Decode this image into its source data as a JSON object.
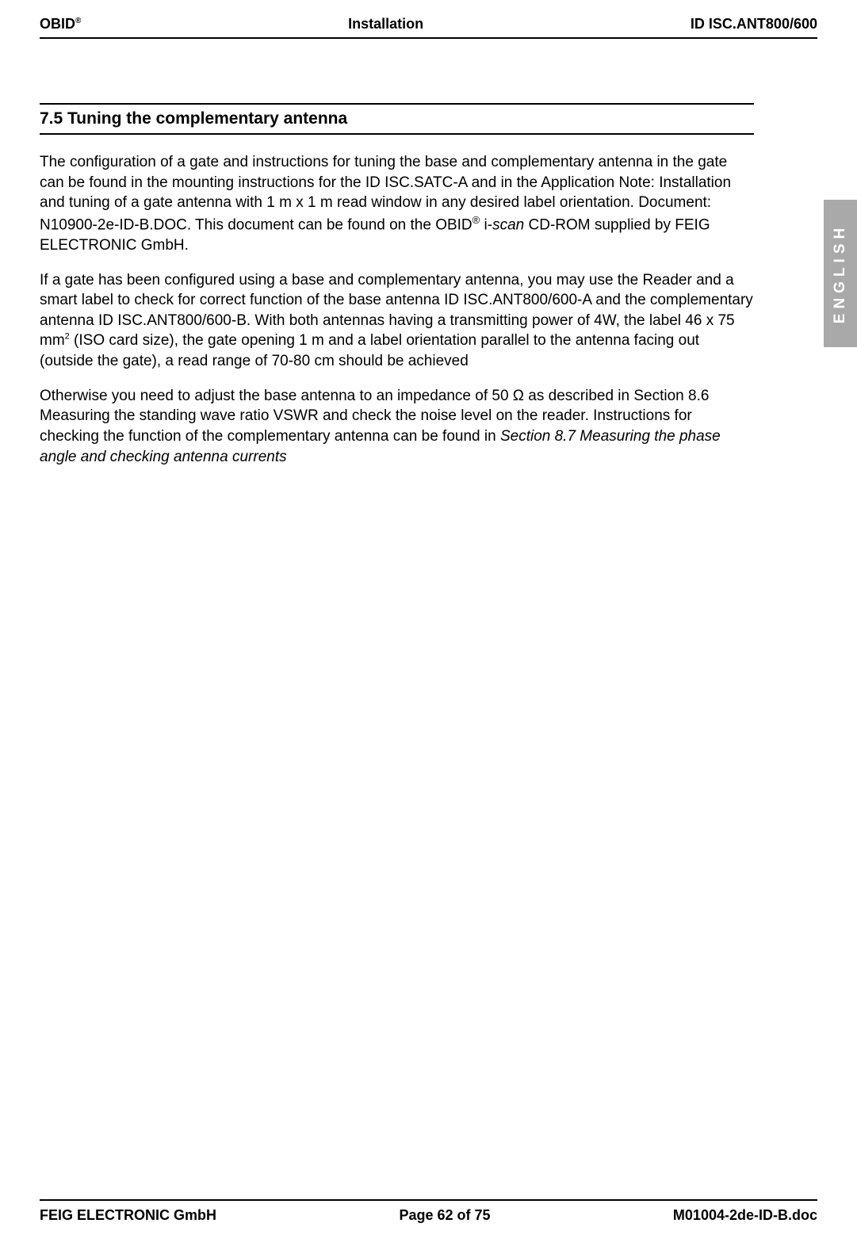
{
  "header": {
    "left_brand": "OBID",
    "left_reg": "®",
    "center": "Installation",
    "right": "ID ISC.ANT800/600"
  },
  "section_title": "7.5 Tuning the complementary antenna",
  "para1_part1": "The configuration of a gate and instructions for tuning the base and complementary antenna in the gate can be found in the mounting instructions for the ID ISC.SATC-A and in the Application Note: Installation and tuning of a gate antenna with 1 m x 1 m read window in any desired label orientation. Document: N10900-2e-ID-B.DOC. This document can be found on the OBID",
  "para1_reg": "®",
  "para1_iscan_prefix": " i-",
  "para1_iscan_italic": "scan",
  "para1_part2": " CD-ROM supplied by FEIG ELECTRONIC GmbH.",
  "para2_part1": "If a gate has been configured using a base and complementary antenna, you may use the Reader and a smart label to check for correct function of the base antenna ID ISC.ANT800/600-A and the complementary antenna ID ISC.ANT800/600-B. With both antennas having a transmitting power of 4W, the label 46 x 75 mm",
  "para2_sup": "2",
  "para2_part2": " (ISO card size), the gate opening 1 m and a label orientation parallel to the antenna facing out (outside the gate), a read range of 70-80 cm should be achieved",
  "para3_part1": "Otherwise you need to adjust the base antenna to an impedance of 50 Ω as described in Section 8.6 Measuring the standing wave ratio VSWR and check the noise level on the reader. Instructions for checking the function of the complementary antenna can be found in ",
  "para3_italic": "Section 8.7 Measuring the phase angle and checking antenna currents",
  "side_tab": "ENGLISH",
  "footer": {
    "left": "FEIG ELECTRONIC GmbH",
    "center": "Page 62 of 75",
    "right": "M01004-2de-ID-B.doc"
  }
}
